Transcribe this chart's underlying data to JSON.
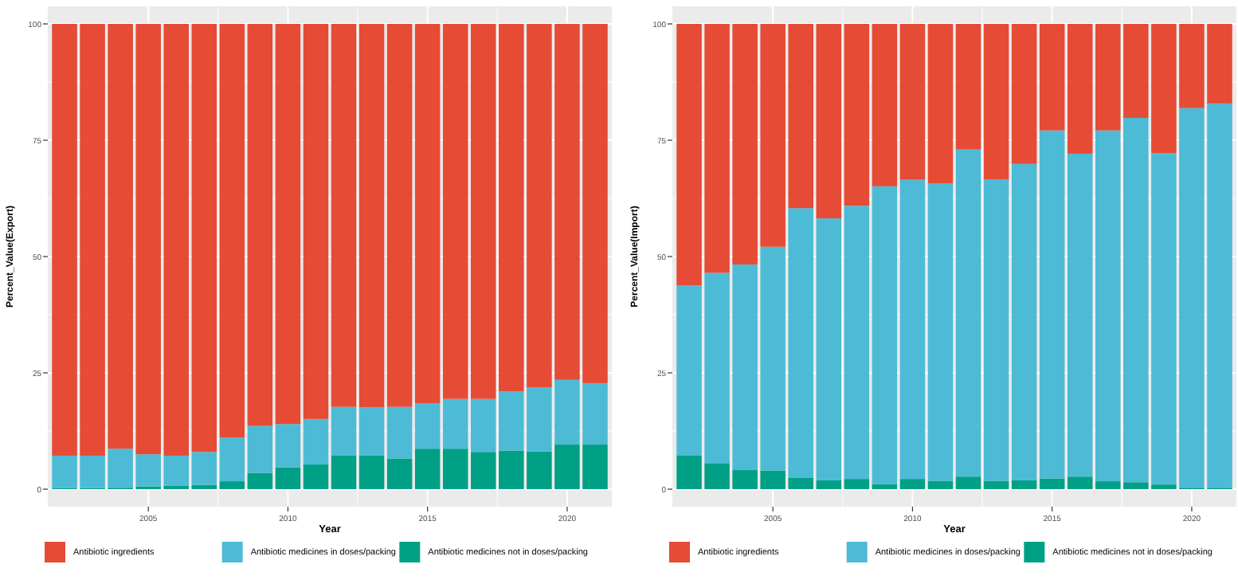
{
  "chart_data": [
    {
      "type": "bar",
      "stacked": true,
      "xlabel": "Year",
      "ylabel": "Percent_Value(Export)",
      "x": [
        2002,
        2003,
        2004,
        2005,
        2006,
        2007,
        2008,
        2009,
        2010,
        2011,
        2012,
        2013,
        2014,
        2015,
        2016,
        2017,
        2018,
        2019,
        2020,
        2021
      ],
      "xlim": [
        2001.4,
        2021.6
      ],
      "xticks": [
        2005,
        2010,
        2015,
        2020
      ],
      "ylim": [
        0,
        100
      ],
      "yticks": [
        0,
        25,
        50,
        75,
        100
      ],
      "grid": true,
      "legend": "bottom",
      "series": [
        {
          "name": "Antibiotic medicines not in doses/packing",
          "color": "#00a087",
          "values": [
            0.2,
            0.2,
            0.3,
            0.6,
            0.7,
            0.9,
            1.7,
            3.5,
            4.7,
            5.3,
            7.2,
            7.2,
            6.6,
            8.7,
            8.7,
            8.0,
            8.3,
            8.1,
            9.6,
            9.6
          ]
        },
        {
          "name": "Antibiotic medicines in doses/packing",
          "color": "#4dbbd5",
          "values": [
            7.0,
            7.0,
            8.4,
            6.9,
            6.5,
            7.1,
            9.4,
            10.1,
            9.3,
            9.8,
            10.5,
            10.4,
            11.1,
            9.8,
            10.7,
            11.4,
            12.7,
            13.8,
            13.9,
            13.2
          ]
        },
        {
          "name": "Antibiotic ingredients",
          "color": "#e64b35",
          "values": [
            92.8,
            92.8,
            91.3,
            92.5,
            92.8,
            92.0,
            88.9,
            86.4,
            86.0,
            84.9,
            82.3,
            82.4,
            82.3,
            81.5,
            80.6,
            80.6,
            79.0,
            78.1,
            76.5,
            77.2
          ]
        }
      ]
    },
    {
      "type": "bar",
      "stacked": true,
      "xlabel": "Year",
      "ylabel": "Percent_Value(Import)",
      "x": [
        2002,
        2003,
        2004,
        2005,
        2006,
        2007,
        2008,
        2009,
        2010,
        2011,
        2012,
        2013,
        2014,
        2015,
        2016,
        2017,
        2018,
        2019,
        2020,
        2021
      ],
      "xlim": [
        2001.4,
        2021.6
      ],
      "xticks": [
        2005,
        2010,
        2015,
        2020
      ],
      "ylim": [
        0,
        100
      ],
      "yticks": [
        0,
        25,
        50,
        75,
        100
      ],
      "grid": true,
      "legend": "bottom",
      "series": [
        {
          "name": "Antibiotic medicines not in doses/packing",
          "color": "#00a087",
          "values": [
            7.3,
            5.6,
            4.1,
            4.0,
            2.4,
            1.9,
            2.2,
            1.1,
            2.2,
            1.8,
            2.7,
            1.8,
            1.9,
            2.3,
            2.7,
            1.7,
            1.5,
            1.0,
            0.3,
            0.3
          ]
        },
        {
          "name": "Antibiotic medicines in doses/packing",
          "color": "#4dbbd5",
          "values": [
            36.5,
            40.9,
            44.2,
            48.1,
            58.0,
            56.3,
            58.7,
            64.0,
            64.3,
            63.9,
            70.3,
            64.8,
            68.0,
            74.8,
            69.4,
            75.4,
            78.3,
            71.2,
            81.6,
            82.6
          ]
        },
        {
          "name": "Antibiotic ingredients",
          "color": "#e64b35",
          "values": [
            56.2,
            53.5,
            51.7,
            47.9,
            39.6,
            41.8,
            39.1,
            34.9,
            33.5,
            34.3,
            27.0,
            33.4,
            30.1,
            22.9,
            27.9,
            22.9,
            20.2,
            27.8,
            18.1,
            17.1
          ]
        }
      ]
    }
  ]
}
